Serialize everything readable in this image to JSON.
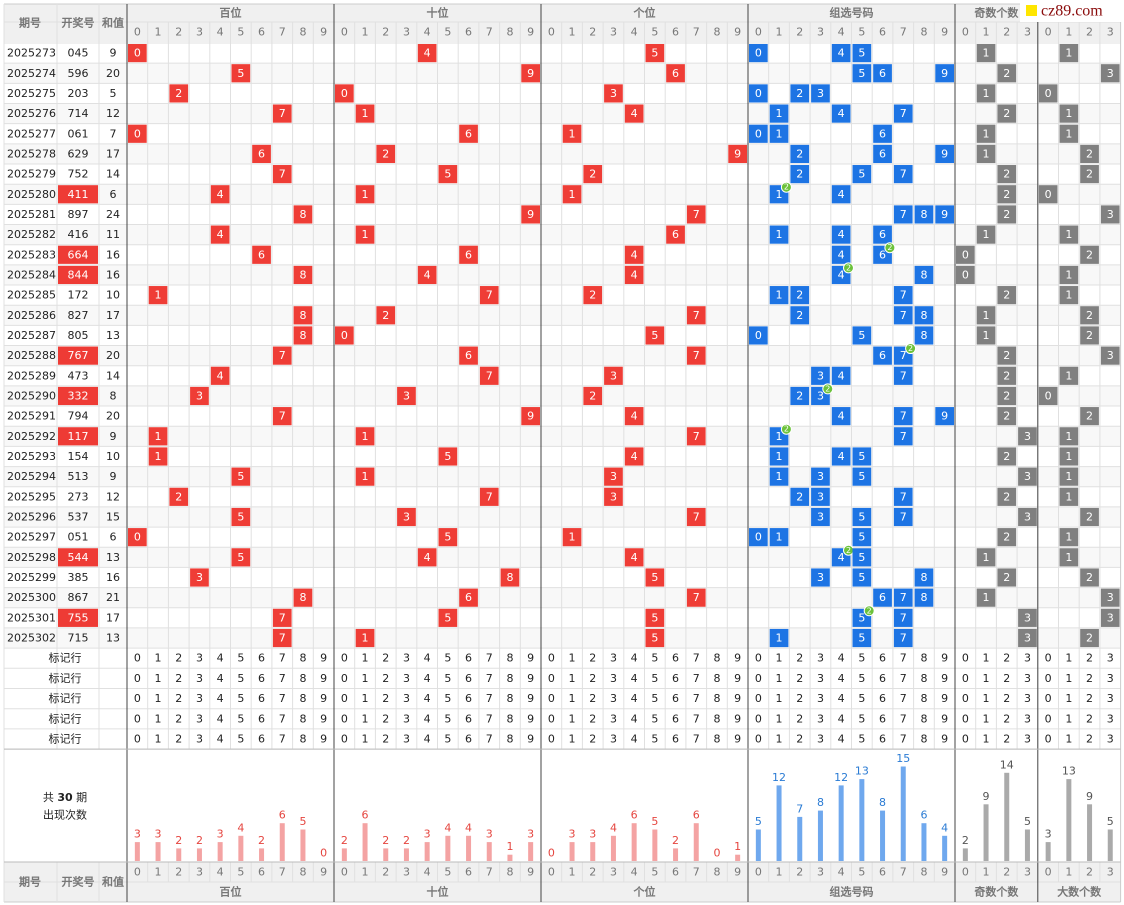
{
  "header": {
    "issue": "期号",
    "number": "开奖号",
    "sum": "和值",
    "groups": [
      "百位",
      "十位",
      "个位",
      "组选号码",
      "奇数个数",
      "大数个数"
    ]
  },
  "digits": [
    0,
    1,
    2,
    3,
    4,
    5,
    6,
    7,
    8,
    9
  ],
  "draws": [
    {
      "issue": "2025273",
      "number": "045",
      "sum": 9
    },
    {
      "issue": "2025274",
      "number": "596",
      "sum": 20
    },
    {
      "issue": "2025275",
      "number": "203",
      "sum": 5
    },
    {
      "issue": "2025276",
      "number": "714",
      "sum": 12
    },
    {
      "issue": "2025277",
      "number": "061",
      "sum": 7
    },
    {
      "issue": "2025278",
      "number": "629",
      "sum": 17
    },
    {
      "issue": "2025279",
      "number": "752",
      "sum": 14
    },
    {
      "issue": "2025280",
      "number": "411",
      "sum": 6
    },
    {
      "issue": "2025281",
      "number": "897",
      "sum": 24
    },
    {
      "issue": "2025282",
      "number": "416",
      "sum": 11
    },
    {
      "issue": "2025283",
      "number": "664",
      "sum": 16
    },
    {
      "issue": "2025284",
      "number": "844",
      "sum": 16
    },
    {
      "issue": "2025285",
      "number": "172",
      "sum": 10
    },
    {
      "issue": "2025286",
      "number": "827",
      "sum": 17
    },
    {
      "issue": "2025287",
      "number": "805",
      "sum": 13
    },
    {
      "issue": "2025288",
      "number": "767",
      "sum": 20
    },
    {
      "issue": "2025289",
      "number": "473",
      "sum": 14
    },
    {
      "issue": "2025290",
      "number": "332",
      "sum": 8
    },
    {
      "issue": "2025291",
      "number": "794",
      "sum": 20
    },
    {
      "issue": "2025292",
      "number": "117",
      "sum": 9
    },
    {
      "issue": "2025293",
      "number": "154",
      "sum": 10
    },
    {
      "issue": "2025294",
      "number": "513",
      "sum": 9
    },
    {
      "issue": "2025295",
      "number": "273",
      "sum": 12
    },
    {
      "issue": "2025296",
      "number": "537",
      "sum": 15
    },
    {
      "issue": "2025297",
      "number": "051",
      "sum": 6
    },
    {
      "issue": "2025298",
      "number": "544",
      "sum": 13
    },
    {
      "issue": "2025299",
      "number": "385",
      "sum": 16
    },
    {
      "issue": "2025300",
      "number": "867",
      "sum": 21
    },
    {
      "issue": "2025301",
      "number": "755",
      "sum": 17
    },
    {
      "issue": "2025302",
      "number": "715",
      "sum": 13
    }
  ],
  "mark_row_label": "标记行",
  "stats": {
    "prefix": "共",
    "total": 30,
    "suffix": "期",
    "caption": "出现次数",
    "counts": [
      [
        3,
        3,
        2,
        2,
        3,
        4,
        2,
        6,
        5,
        0
      ],
      [
        2,
        6,
        2,
        2,
        3,
        4,
        4,
        3,
        1,
        3
      ],
      [
        0,
        3,
        3,
        4,
        6,
        5,
        2,
        6,
        0,
        1
      ],
      [
        5,
        12,
        7,
        8,
        12,
        13,
        8,
        15,
        6,
        4
      ],
      [
        2,
        9,
        14,
        5
      ],
      [
        3,
        13,
        9,
        5
      ]
    ]
  },
  "colors": {
    "position": "#ef3d36",
    "group": "#1d74e4",
    "count": "#808080",
    "pair": "#ee3b35",
    "badge": "#6cc23a"
  },
  "watermark": "cz89.com"
}
